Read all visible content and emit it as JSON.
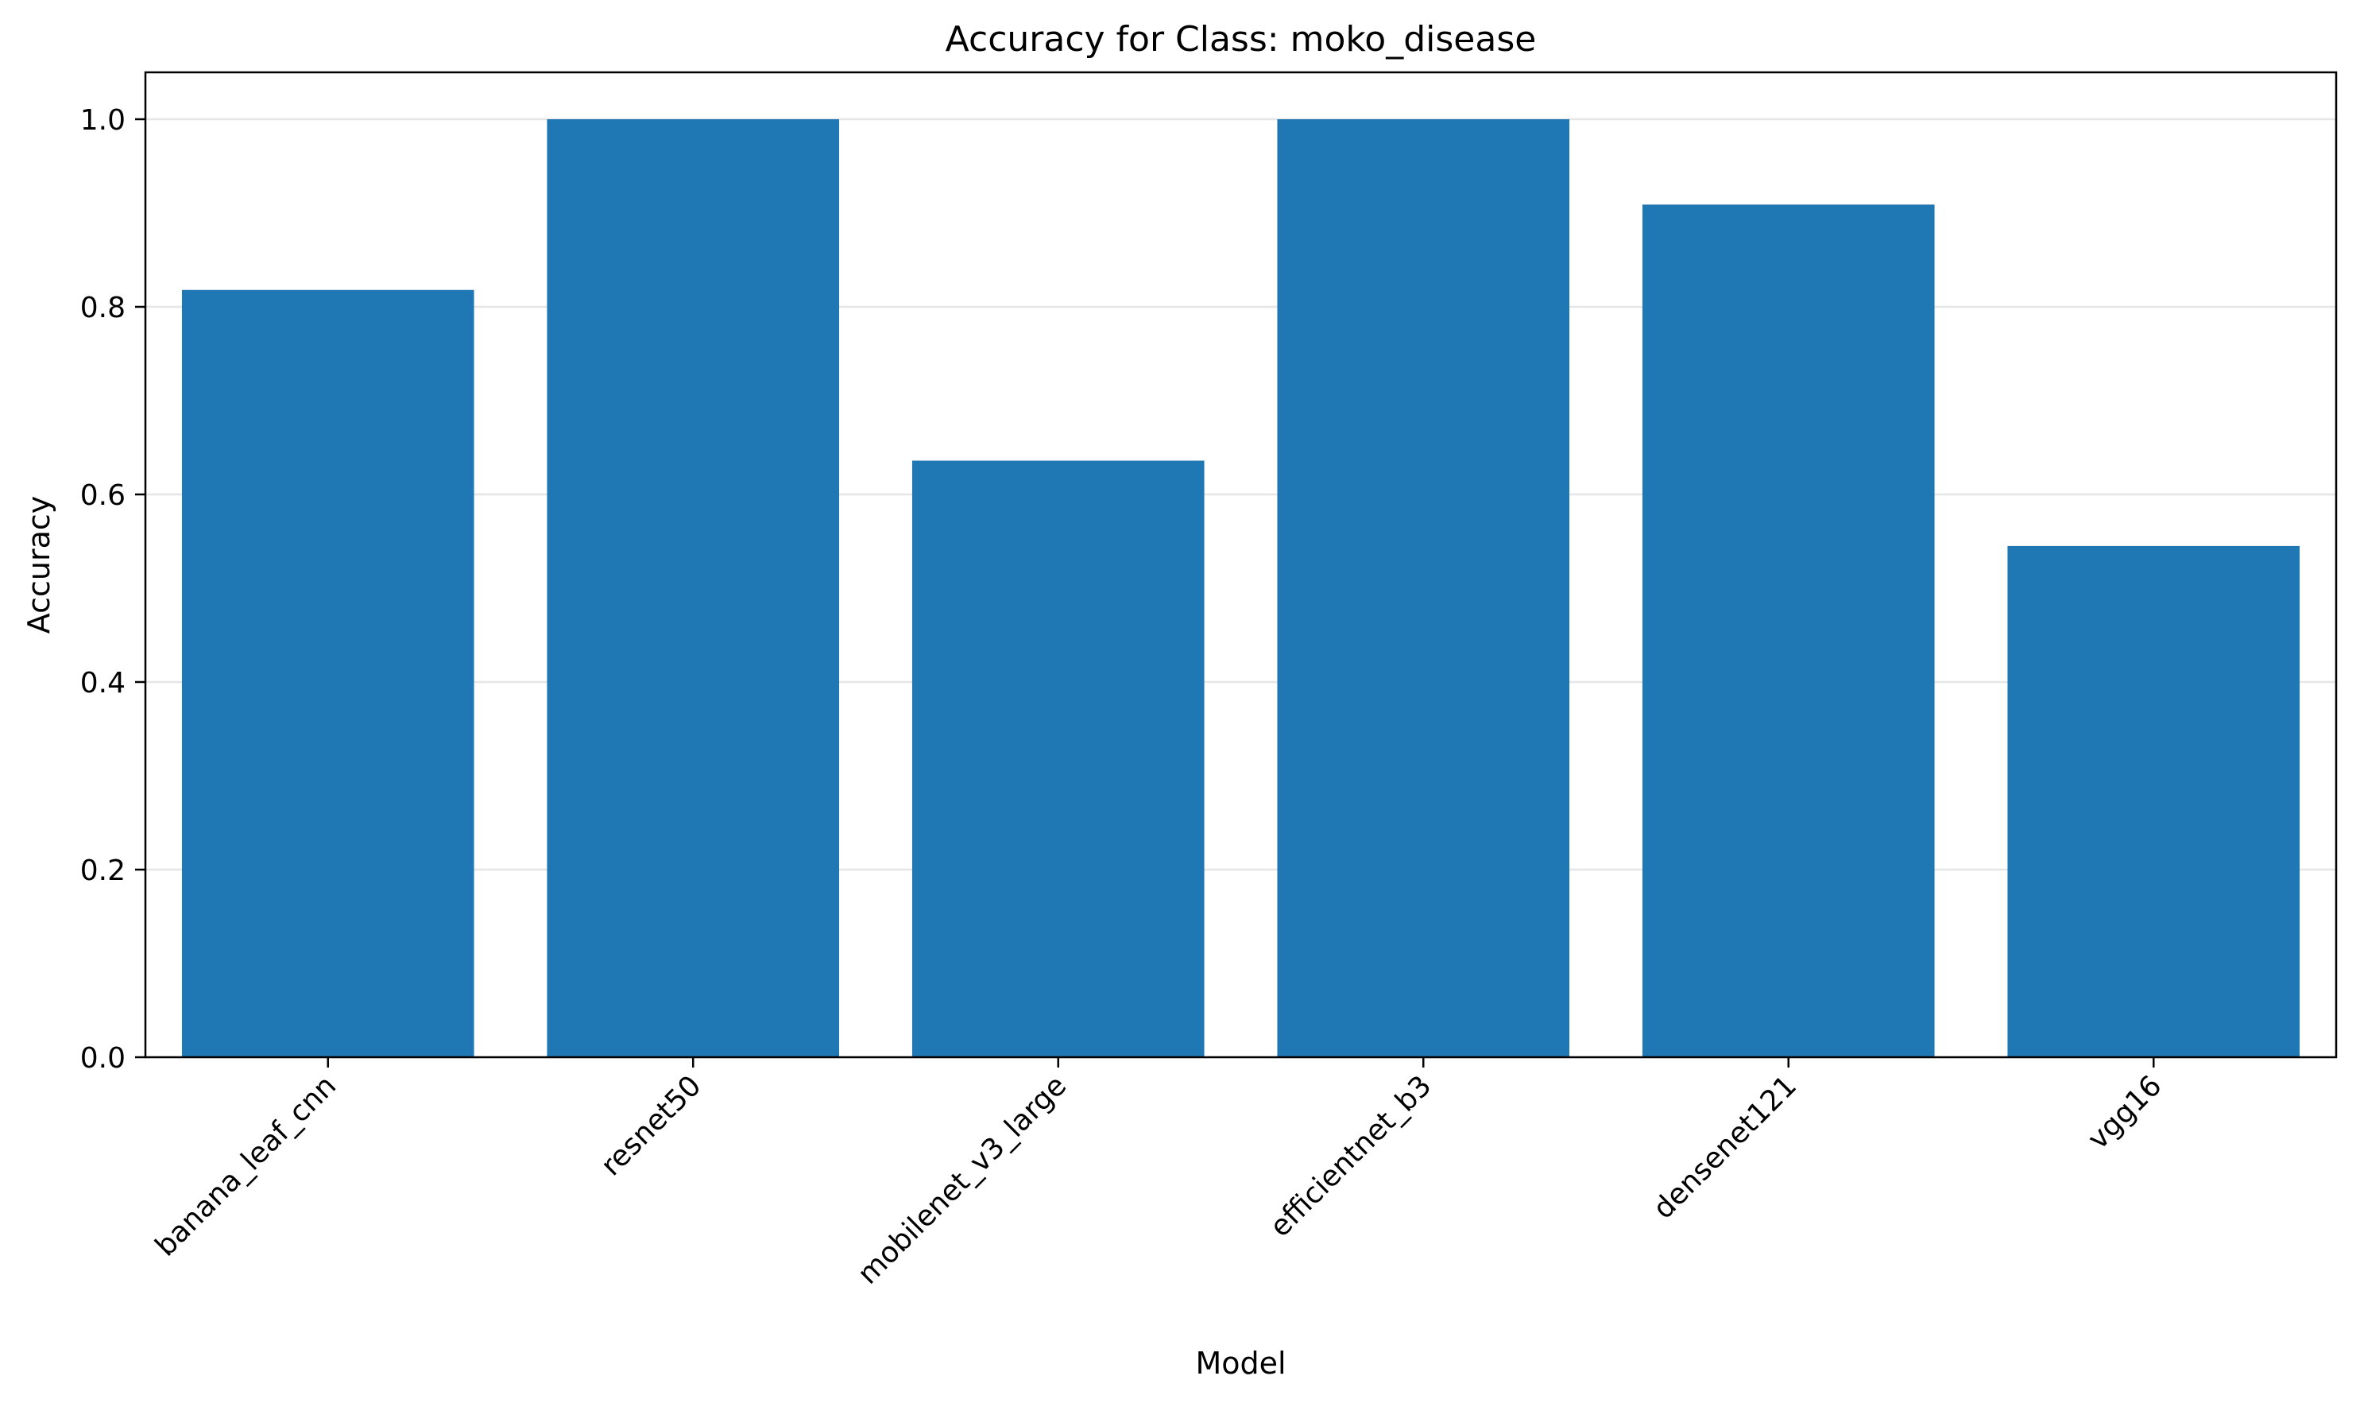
{
  "chart_data": {
    "type": "bar",
    "title": "Accuracy for Class: moko_disease",
    "xlabel": "Model",
    "ylabel": "Accuracy",
    "categories": [
      "banana_leaf_cnn",
      "resnet50",
      "mobilenet_v3_large",
      "efficientnet_b3",
      "densenet121",
      "vgg16"
    ],
    "values": [
      0.818,
      1.0,
      0.636,
      1.0,
      0.909,
      0.545
    ],
    "ylim": [
      0,
      1.05
    ],
    "yticks": [
      0.0,
      0.2,
      0.4,
      0.6,
      0.8,
      1.0
    ],
    "ytick_labels": [
      "0.0",
      "0.2",
      "0.4",
      "0.6",
      "0.8",
      "1.0"
    ],
    "grid": "y-axis horizontal lines",
    "legend": "none",
    "bar_color": "#1f77b4",
    "grid_color": "#e6e6e6"
  }
}
